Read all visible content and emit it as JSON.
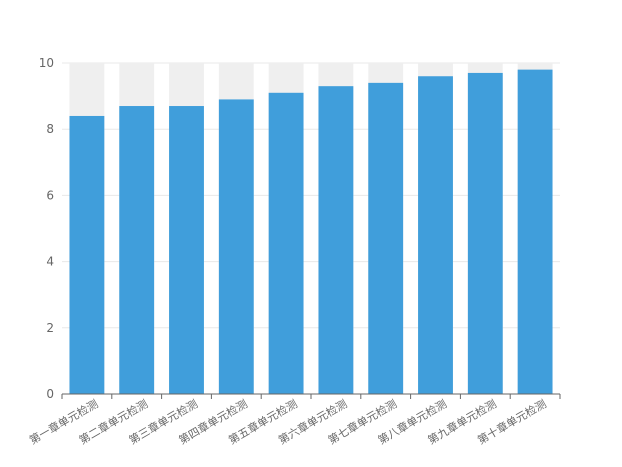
{
  "chart_data": {
    "type": "bar",
    "categories": [
      "第一章单元检测",
      "第二章单元检测",
      "第三章单元检测",
      "第四章单元检测",
      "第五章单元检测",
      "第六章单元检测",
      "第七章单元检测",
      "第八章单元检测",
      "第九章单元检测",
      "第十章单元检测"
    ],
    "values": [
      8.4,
      8.7,
      8.7,
      8.9,
      9.1,
      9.3,
      9.4,
      9.6,
      9.7,
      9.8
    ],
    "background_max": 10,
    "ylim": [
      0,
      10
    ],
    "yticks": [
      "0",
      "2",
      "4",
      "6",
      "8",
      "10"
    ],
    "grid": true,
    "colors": {
      "bar": "#409edb",
      "background_bar": "#efefef",
      "grid": "#e8e8e8",
      "axis": "#666666",
      "text": "#666666"
    }
  }
}
